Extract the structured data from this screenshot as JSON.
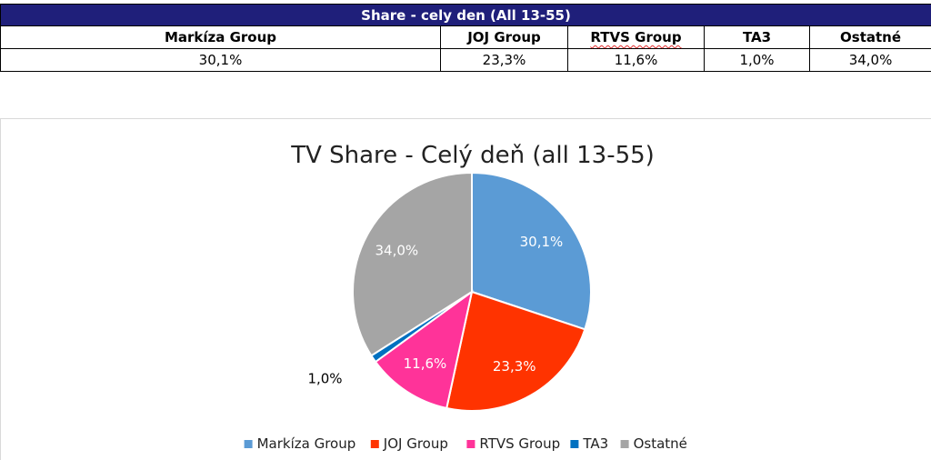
{
  "table": {
    "title": "Share - cely den (All 13-55)",
    "headers": [
      "Markíza Group",
      "JOJ Group",
      "RTVS Group",
      "TA3",
      "Ostatné"
    ],
    "values": [
      "30,1%",
      "23,3%",
      "11,6%",
      "1,0%",
      "34,0%"
    ]
  },
  "chart_data": {
    "type": "pie",
    "title": "TV Share - Celý deň (all 13-55)",
    "categories": [
      "Markíza Group",
      "JOJ Group",
      "RTVS Group",
      "TA3",
      "Ostatné"
    ],
    "values": [
      30.1,
      23.3,
      11.6,
      1.0,
      34.0
    ],
    "labels": [
      "30,1%",
      "23,3%",
      "11,6%",
      "1,0%",
      "34,0%"
    ],
    "colors": [
      "#5b9bd5",
      "#ff3300",
      "#ff3399",
      "#0070c0",
      "#a5a5a5"
    ],
    "label_colors": [
      "#ffffff",
      "#ffffff",
      "#ffffff",
      "#000000",
      "#ffffff"
    ],
    "legend": "bottom"
  }
}
